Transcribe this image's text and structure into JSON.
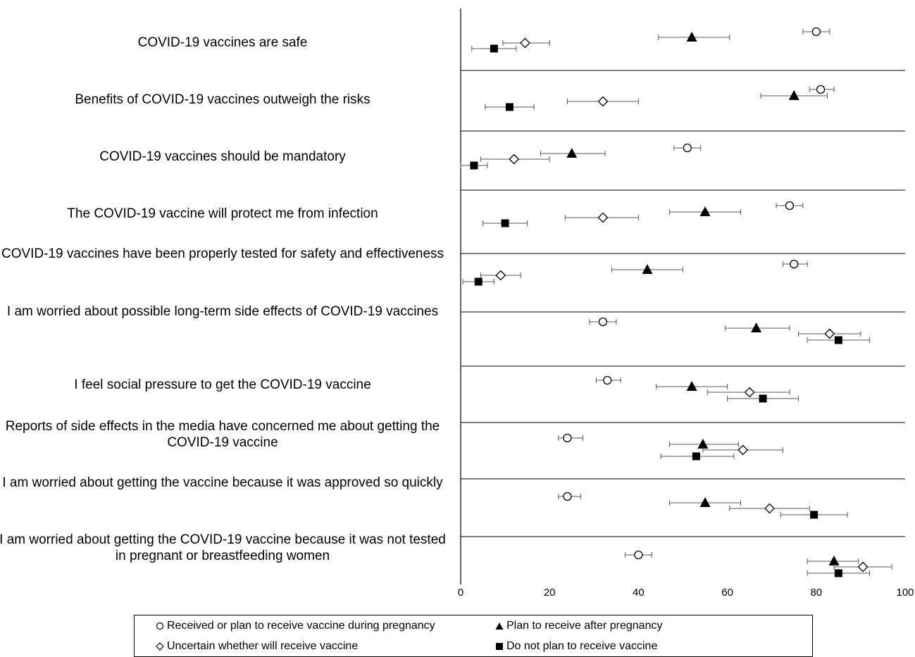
{
  "chart_data": {
    "type": "scatter",
    "orientation": "horizontal",
    "title": "",
    "xlabel": "",
    "ylabel": "",
    "xlim": [
      0,
      100
    ],
    "xticks": [
      "0",
      "20",
      "40",
      "60",
      "80",
      "100"
    ],
    "grid": false,
    "legend_position": "bottom",
    "categories": [
      "COVID-19 vaccines are safe",
      "Benefits of COVID-19 vaccines outweigh the risks",
      "COVID-19 vaccines should be mandatory",
      "The COVID-19 vaccine will protect me from infection",
      "COVID-19 vaccines have been properly tested for safety and effectiveness",
      "I am worried about possible long-term side effects of COVID-19 vaccines",
      "I feel social pressure to get the COVID-19 vaccine",
      "Reports of side effects in the media have concerned me about getting the COVID-19 vaccine",
      "I am worried about getting the vaccine because it was approved so quickly",
      "I am worried about getting the COVID-19 vaccine because it was not tested in pregnant or breastfeeding women"
    ],
    "series": [
      {
        "name": "Received or plan to receive vaccine during pregnancy",
        "marker": "circle-open",
        "values": [
          80,
          81,
          51,
          74,
          75,
          32,
          33,
          24,
          24,
          40
        ],
        "low": [
          77,
          78.5,
          48,
          71,
          72.5,
          29,
          30.5,
          22,
          22,
          37
        ],
        "high": [
          83,
          84,
          54,
          77,
          78,
          35,
          36,
          27.5,
          27,
          43
        ]
      },
      {
        "name": "Plan to receive after pregnancy",
        "marker": "triangle-filled",
        "values": [
          52,
          75,
          25,
          55,
          42,
          66.5,
          52,
          54.5,
          55,
          84
        ],
        "low": [
          44.5,
          67.5,
          18,
          47,
          34,
          59.5,
          44,
          47,
          47,
          78
        ],
        "high": [
          60.5,
          82.5,
          32.5,
          63,
          50,
          74,
          60,
          62.5,
          63,
          89.5
        ]
      },
      {
        "name": "Uncertain whether will receive vaccine",
        "marker": "diamond-open",
        "values": [
          14.5,
          32,
          12,
          32,
          9,
          83,
          65,
          63.5,
          69.5,
          90.5
        ],
        "low": [
          9.5,
          24,
          4.5,
          23.5,
          4.5,
          76,
          55.5,
          54.5,
          60.5,
          84
        ],
        "high": [
          20,
          40,
          20,
          40,
          13.5,
          90,
          74,
          72.5,
          78.5,
          97
        ]
      },
      {
        "name": "Do not plan to receive vaccine",
        "marker": "square-filled",
        "values": [
          7.5,
          11,
          3,
          10,
          4,
          85,
          68,
          53,
          79.5,
          85
        ],
        "low": [
          2.5,
          5.5,
          0,
          5,
          0.5,
          78,
          60,
          45,
          72,
          78
        ],
        "high": [
          12.5,
          16.5,
          6,
          15,
          7.5,
          92,
          76,
          61.5,
          87,
          92
        ]
      }
    ]
  }
}
